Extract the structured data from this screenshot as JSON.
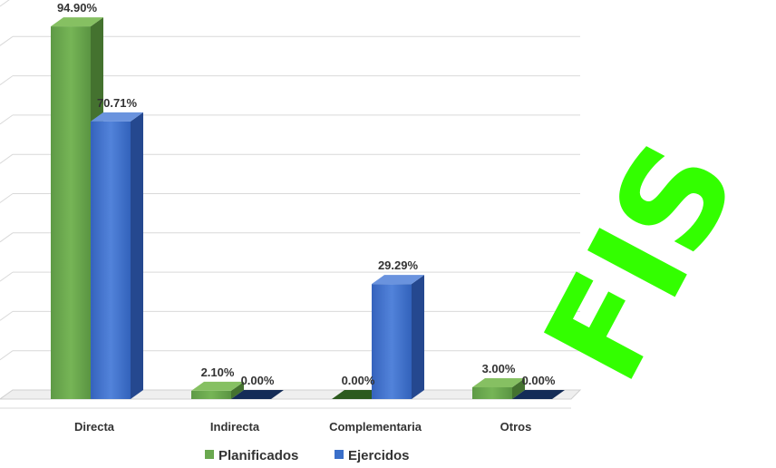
{
  "chart_data": {
    "type": "bar",
    "categories": [
      "Directa",
      "Indirecta",
      "Complementaria",
      "Otros"
    ],
    "series": [
      {
        "name": "Planificados",
        "values": [
          94.9,
          2.1,
          0.0,
          3.0
        ],
        "labels": [
          "94.90%",
          "2.10%",
          "0.00%",
          "3.00%"
        ],
        "color": "#6aa84f"
      },
      {
        "name": "Ejercidos",
        "values": [
          70.71,
          0.0,
          29.29,
          0.0
        ],
        "labels": [
          "70.71%",
          "0.00%",
          "29.29%",
          "0.00%"
        ],
        "color": "#3a6fc9"
      }
    ],
    "ylim": [
      0,
      100
    ],
    "grid": true,
    "legend_position": "bottom",
    "title": "",
    "xlabel": "",
    "ylabel": ""
  },
  "watermark": {
    "text": "FIS",
    "color": "#33ff00"
  }
}
